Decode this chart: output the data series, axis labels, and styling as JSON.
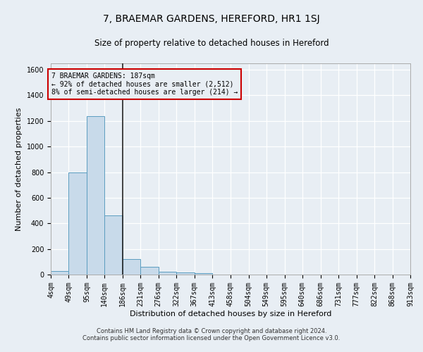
{
  "title": "7, BRAEMAR GARDENS, HEREFORD, HR1 1SJ",
  "subtitle": "Size of property relative to detached houses in Hereford",
  "xlabel": "Distribution of detached houses by size in Hereford",
  "ylabel": "Number of detached properties",
  "footer_line1": "Contains HM Land Registry data © Crown copyright and database right 2024.",
  "footer_line2": "Contains public sector information licensed under the Open Government Licence v3.0.",
  "annotation_line1": "7 BRAEMAR GARDENS: 187sqm",
  "annotation_line2": "← 92% of detached houses are smaller (2,512)",
  "annotation_line3": "8% of semi-detached houses are larger (214) →",
  "bin_edges": [
    4,
    49,
    95,
    140,
    186,
    231,
    276,
    322,
    367,
    413,
    458,
    504,
    549,
    595,
    640,
    686,
    731,
    777,
    822,
    868,
    913
  ],
  "bar_heights": [
    25,
    800,
    1240,
    460,
    120,
    60,
    22,
    18,
    13,
    0,
    0,
    0,
    0,
    0,
    0,
    0,
    0,
    0,
    0,
    0
  ],
  "bar_color": "#c8daea",
  "bar_edge_color": "#5b9dc0",
  "vline_color": "#222222",
  "vline_x": 186,
  "annotation_box_edge_color": "#cc0000",
  "background_color": "#e8eef4",
  "grid_color": "#ffffff",
  "ylim": [
    0,
    1650
  ],
  "yticks": [
    0,
    200,
    400,
    600,
    800,
    1000,
    1200,
    1400,
    1600
  ],
  "title_fontsize": 10,
  "subtitle_fontsize": 8.5,
  "ylabel_fontsize": 8,
  "xlabel_fontsize": 8,
  "tick_fontsize": 7,
  "footer_fontsize": 6,
  "annotation_fontsize": 7
}
